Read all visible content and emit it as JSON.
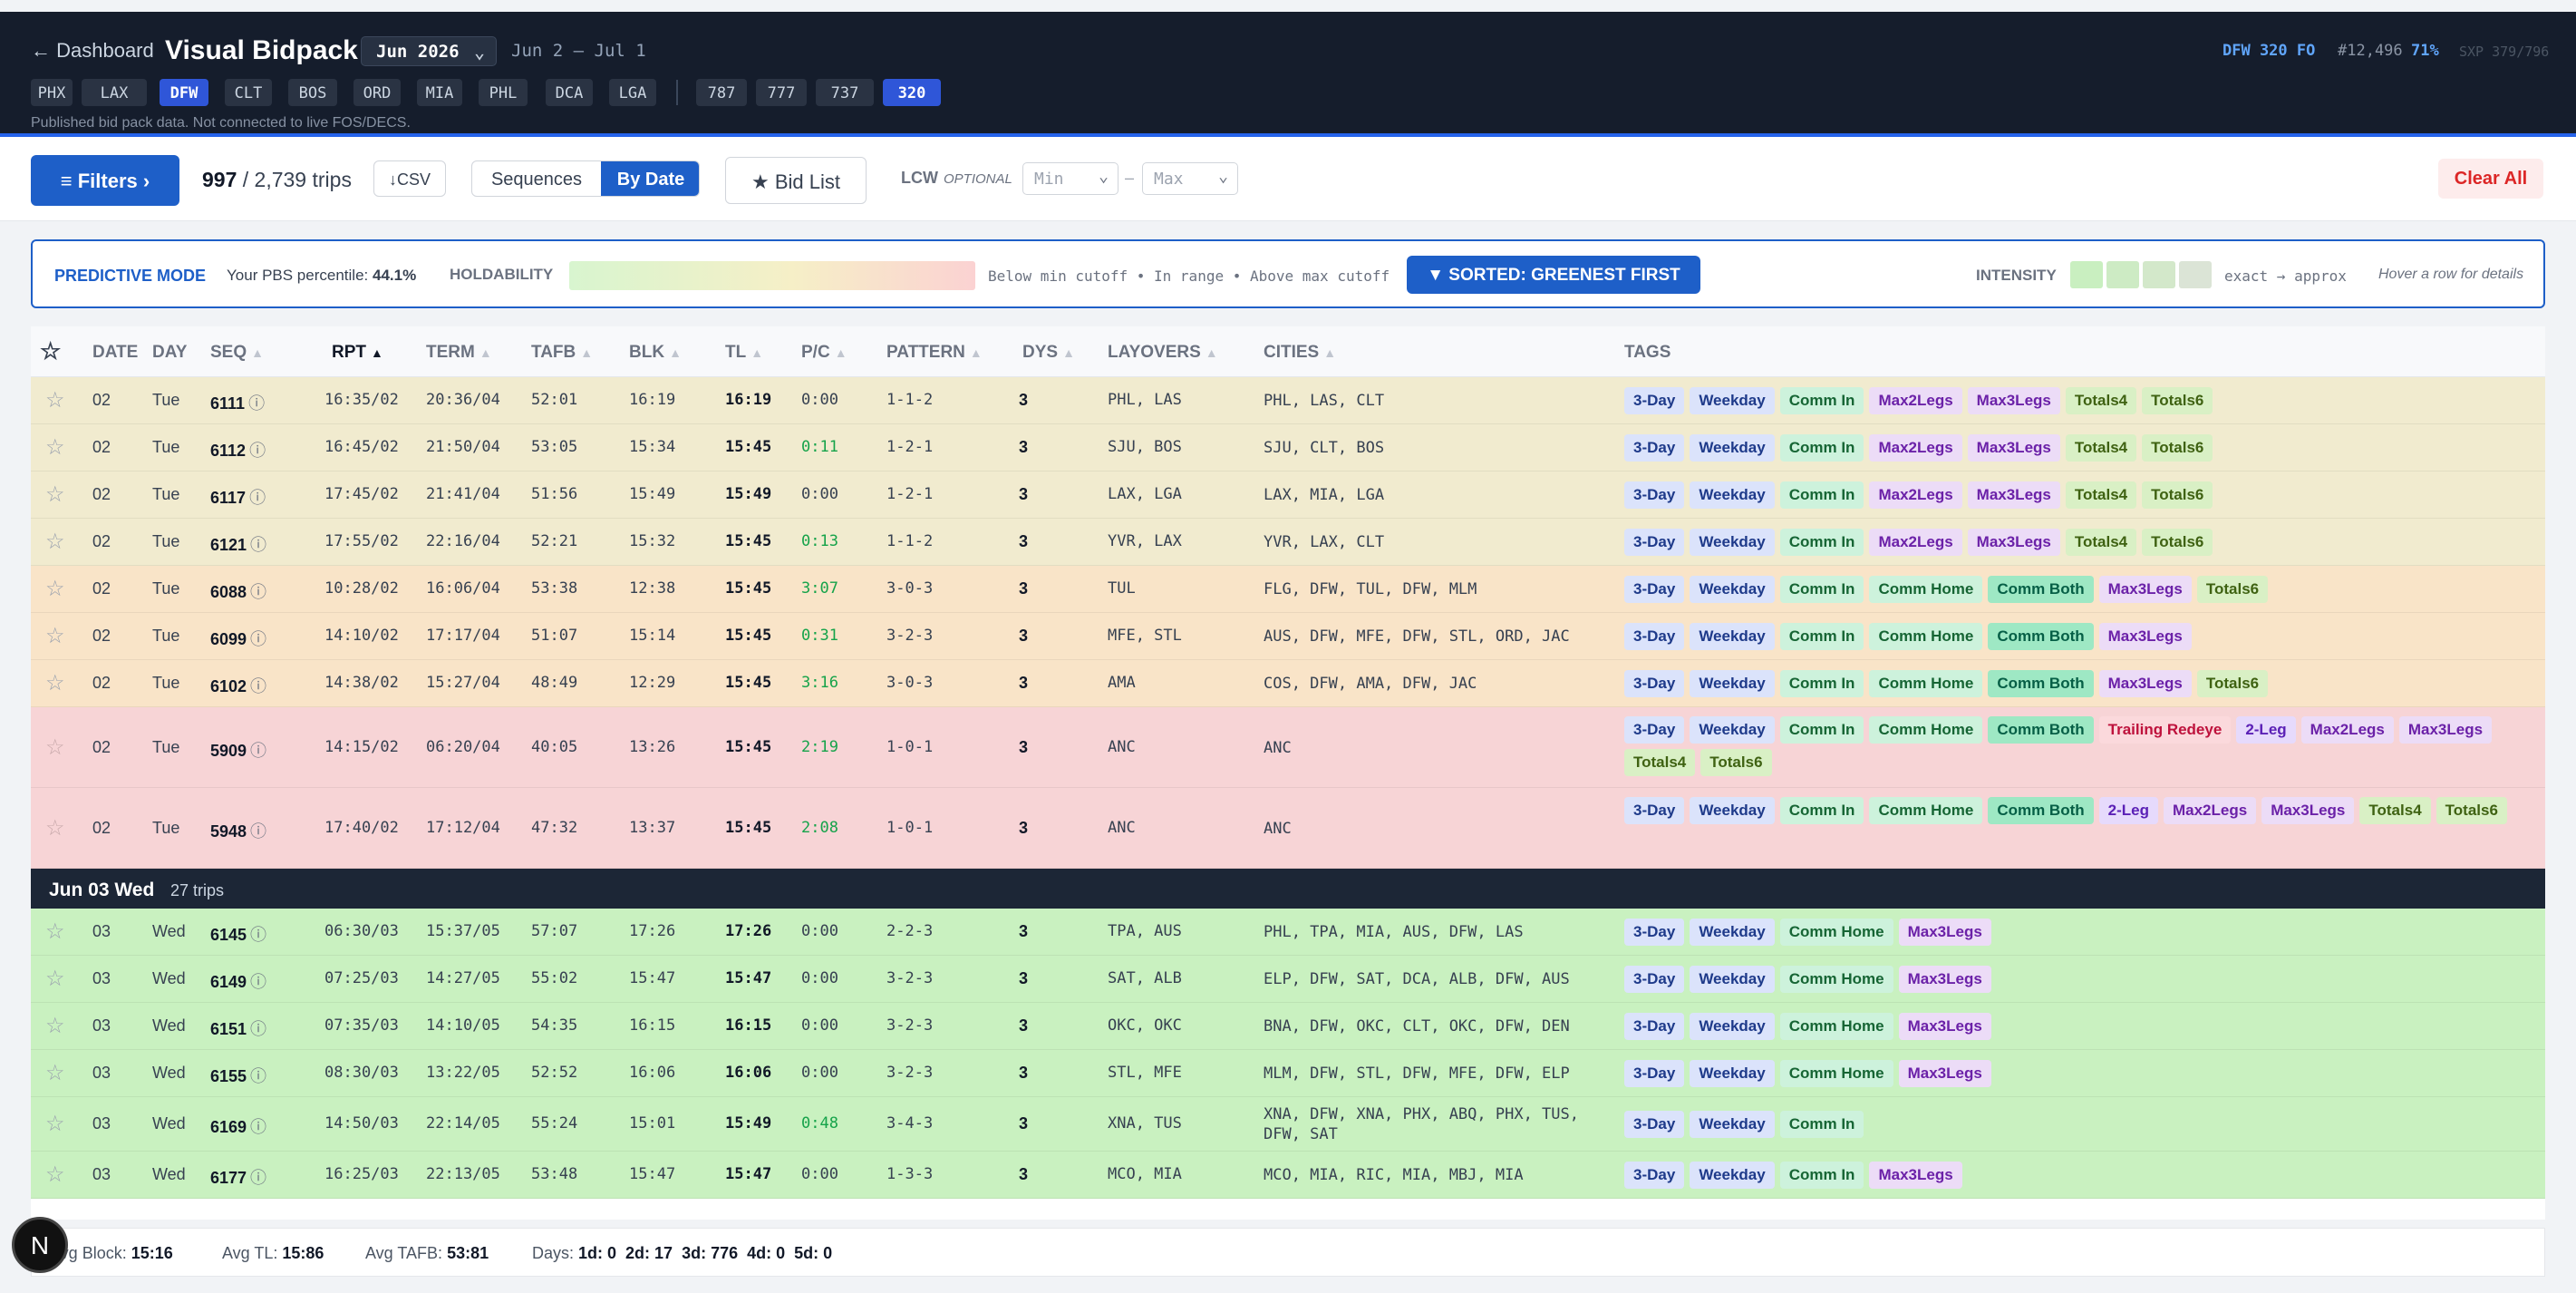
{
  "header": {
    "back": "← Dashboard",
    "title": "Visual Bidpack",
    "month": "Jun 2026",
    "date_range": "Jun 2 – Jul 1",
    "bases": [
      "PHX",
      "LAX",
      "DFW",
      "CLT",
      "BOS",
      "ORD",
      "MIA",
      "PHL",
      "DCA",
      "LGA"
    ],
    "active_base": "DFW",
    "fleets": [
      "787",
      "777",
      "737",
      "320"
    ],
    "active_fleet": "320",
    "note": "Published bid pack data. Not connected to live FOS/DECS.",
    "profile": "DFW 320 FO",
    "seniority": "#12,496",
    "percent": "71%",
    "sxp": "SXP 379/796"
  },
  "toolbar": {
    "filters": "≡ Filters ›",
    "count_shown": "997",
    "count_total": "/ 2,739 trips",
    "csv": "↓CSV",
    "seg_sequences": "Sequences",
    "seg_bydate": "By Date",
    "bid_list": "★ Bid List",
    "lcw": "LCW",
    "lcw_optional": "OPTIONAL",
    "min": "Min",
    "dash": "–",
    "max": "Max",
    "clear_all": "Clear All"
  },
  "predictive": {
    "mode": "PREDICTIVE MODE",
    "pct_label": "Your PBS percentile:",
    "pct_value": "44.1%",
    "holdability": "HOLDABILITY",
    "legend": "Below min cutoff • In range • Above max cutoff",
    "sorted": "▼ SORTED: GREENEST FIRST",
    "intensity": "INTENSITY",
    "intensity_colors": [
      "#c9efc0",
      "#cdebc4",
      "#d3e8ca",
      "#dbe4d6"
    ],
    "exact": "exact → approx",
    "hover": "Hover a row for details"
  },
  "columns": {
    "star": "☆",
    "date": "DATE",
    "day": "DAY",
    "seq": "SEQ",
    "rpt": "RPT",
    "term": "TERM",
    "tafb": "TAFB",
    "blk": "BLK",
    "tl": "TL",
    "pc": "P/C",
    "pattern": "PATTERN",
    "dys": "DYS",
    "layovers": "LAYOVERS",
    "cities": "CITIES",
    "tags": "TAGS"
  },
  "sort_markers": {
    "inactive": "▲",
    "active": "▲"
  },
  "rows_a": [
    {
      "star": "☆",
      "date": "02",
      "day": "Tue",
      "seq": "6111",
      "info": "ⓘ",
      "rpt": "16:35/02",
      "term": "20:36/04",
      "tafb": "52:01",
      "blk": "16:19",
      "tl": "16:19",
      "pc": "0:00",
      "pattern": "1-1-2",
      "dys": "3",
      "layovers": "PHL, LAS",
      "cities": "PHL, LAS, CLT",
      "bg": "#f1ebcf",
      "tags": [
        [
          "3-Day",
          "blue"
        ],
        [
          "Weekday",
          "blue"
        ],
        [
          "Comm In",
          "green"
        ],
        [
          "Max2Legs",
          "purple"
        ],
        [
          "Max3Legs",
          "purple"
        ],
        [
          "Totals4",
          "olive"
        ],
        [
          "Totals6",
          "olive"
        ]
      ]
    },
    {
      "star": "☆",
      "date": "02",
      "day": "Tue",
      "seq": "6112",
      "info": "ⓘ",
      "rpt": "16:45/02",
      "term": "21:50/04",
      "tafb": "53:05",
      "blk": "15:34",
      "tl": "15:45",
      "pc": "0:11",
      "pattern": "1-2-1",
      "dys": "3",
      "layovers": "SJU, BOS",
      "cities": "SJU, CLT, BOS",
      "bg": "#f1ebcf",
      "tags": [
        [
          "3-Day",
          "blue"
        ],
        [
          "Weekday",
          "blue"
        ],
        [
          "Comm In",
          "green"
        ],
        [
          "Max2Legs",
          "purple"
        ],
        [
          "Max3Legs",
          "purple"
        ],
        [
          "Totals4",
          "olive"
        ],
        [
          "Totals6",
          "olive"
        ]
      ]
    },
    {
      "star": "☆",
      "date": "02",
      "day": "Tue",
      "seq": "6117",
      "info": "ⓘ",
      "rpt": "17:45/02",
      "term": "21:41/04",
      "tafb": "51:56",
      "blk": "15:49",
      "tl": "15:49",
      "pc": "0:00",
      "pattern": "1-2-1",
      "dys": "3",
      "layovers": "LAX, LGA",
      "cities": "LAX, MIA, LGA",
      "bg": "#f1ebcf",
      "tags": [
        [
          "3-Day",
          "blue"
        ],
        [
          "Weekday",
          "blue"
        ],
        [
          "Comm In",
          "green"
        ],
        [
          "Max2Legs",
          "purple"
        ],
        [
          "Max3Legs",
          "purple"
        ],
        [
          "Totals4",
          "olive"
        ],
        [
          "Totals6",
          "olive"
        ]
      ]
    },
    {
      "star": "☆",
      "date": "02",
      "day": "Tue",
      "seq": "6121",
      "info": "ⓘ",
      "rpt": "17:55/02",
      "term": "22:16/04",
      "tafb": "52:21",
      "blk": "15:32",
      "tl": "15:45",
      "pc": "0:13",
      "pattern": "1-1-2",
      "dys": "3",
      "layovers": "YVR, LAX",
      "cities": "YVR, LAX, CLT",
      "bg": "#f1ebcf",
      "tags": [
        [
          "3-Day",
          "blue"
        ],
        [
          "Weekday",
          "blue"
        ],
        [
          "Comm In",
          "green"
        ],
        [
          "Max2Legs",
          "purple"
        ],
        [
          "Max3Legs",
          "purple"
        ],
        [
          "Totals4",
          "olive"
        ],
        [
          "Totals6",
          "olive"
        ]
      ]
    },
    {
      "star": "☆",
      "date": "02",
      "day": "Tue",
      "seq": "6088",
      "info": "ⓘ",
      "rpt": "10:28/02",
      "term": "16:06/04",
      "tafb": "53:38",
      "blk": "12:38",
      "tl": "15:45",
      "pc": "3:07",
      "pattern": "3-0-3",
      "dys": "3",
      "layovers": "TUL",
      "cities": "FLG, DFW, TUL, DFW, MLM",
      "bg": "#f9e4c8",
      "tags": [
        [
          "3-Day",
          "blue"
        ],
        [
          "Weekday",
          "blue"
        ],
        [
          "Comm In",
          "green"
        ],
        [
          "Comm Home",
          "green"
        ],
        [
          "Comm Both",
          "teal"
        ],
        [
          "Max3Legs",
          "purple"
        ],
        [
          "Totals6",
          "olive"
        ]
      ]
    },
    {
      "star": "☆",
      "date": "02",
      "day": "Tue",
      "seq": "6099",
      "info": "ⓘ",
      "rpt": "14:10/02",
      "term": "17:17/04",
      "tafb": "51:07",
      "blk": "15:14",
      "tl": "15:45",
      "pc": "0:31",
      "pattern": "3-2-3",
      "dys": "3",
      "layovers": "MFE, STL",
      "cities": "AUS, DFW, MFE, DFW, STL, ORD, JAC",
      "bg": "#f9e4c8",
      "tags": [
        [
          "3-Day",
          "blue"
        ],
        [
          "Weekday",
          "blue"
        ],
        [
          "Comm In",
          "green"
        ],
        [
          "Comm Home",
          "green"
        ],
        [
          "Comm Both",
          "teal"
        ],
        [
          "Max3Legs",
          "purple"
        ]
      ]
    },
    {
      "star": "☆",
      "date": "02",
      "day": "Tue",
      "seq": "6102",
      "info": "ⓘ",
      "rpt": "14:38/02",
      "term": "15:27/04",
      "tafb": "48:49",
      "blk": "12:29",
      "tl": "15:45",
      "pc": "3:16",
      "pattern": "3-0-3",
      "dys": "3",
      "layovers": "AMA",
      "cities": "COS, DFW, AMA, DFW, JAC",
      "bg": "#f9e4c8",
      "tags": [
        [
          "3-Day",
          "blue"
        ],
        [
          "Weekday",
          "blue"
        ],
        [
          "Comm In",
          "green"
        ],
        [
          "Comm Home",
          "green"
        ],
        [
          "Comm Both",
          "teal"
        ],
        [
          "Max3Legs",
          "purple"
        ],
        [
          "Totals6",
          "olive"
        ]
      ]
    },
    {
      "star": "☆",
      "date": "02",
      "day": "Tue",
      "seq": "5909",
      "info": "ⓘ",
      "rpt": "14:15/02",
      "term": "06:20/04",
      "tafb": "40:05",
      "blk": "13:26",
      "tl": "15:45",
      "pc": "2:19",
      "pattern": "1-0-1",
      "dys": "3",
      "layovers": "ANC",
      "cities": "ANC",
      "bg": "#f7d4d6",
      "tall": true,
      "tags": [
        [
          "3-Day",
          "blue"
        ],
        [
          "Weekday",
          "blue"
        ],
        [
          "Comm In",
          "green"
        ],
        [
          "Comm Home",
          "green"
        ],
        [
          "Comm Both",
          "teal"
        ],
        [
          "Trailing Redeye",
          "red"
        ],
        [
          "2-Leg",
          "violet"
        ],
        [
          "Max2Legs",
          "purple"
        ],
        [
          "Max3Legs",
          "purple"
        ],
        [
          "Totals4",
          "olive"
        ],
        [
          "Totals6",
          "olive"
        ]
      ]
    },
    {
      "star": "☆",
      "date": "02",
      "day": "Tue",
      "seq": "5948",
      "info": "ⓘ",
      "rpt": "17:40/02",
      "term": "17:12/04",
      "tafb": "47:32",
      "blk": "13:37",
      "tl": "15:45",
      "pc": "2:08",
      "pattern": "1-0-1",
      "dys": "3",
      "layovers": "ANC",
      "cities": "ANC",
      "bg": "#f7d4d6",
      "tall": true,
      "tags": [
        [
          "3-Day",
          "blue"
        ],
        [
          "Weekday",
          "blue"
        ],
        [
          "Comm In",
          "green"
        ],
        [
          "Comm Home",
          "green"
        ],
        [
          "Comm Both",
          "teal"
        ],
        [
          "2-Leg",
          "violet"
        ],
        [
          "Max2Legs",
          "purple"
        ],
        [
          "Max3Legs",
          "purple"
        ],
        [
          "Totals4",
          "olive"
        ],
        [
          "Totals6",
          "olive"
        ]
      ]
    }
  ],
  "group": {
    "date": "Jun 03 Wed",
    "count": "27 trips"
  },
  "rows_b": [
    {
      "star": "☆",
      "date": "03",
      "day": "Wed",
      "seq": "6145",
      "info": "ⓘ",
      "rpt": "06:30/03",
      "term": "15:37/05",
      "tafb": "57:07",
      "blk": "17:26",
      "tl": "17:26",
      "pc": "0:00",
      "pattern": "2-2-3",
      "dys": "3",
      "layovers": "TPA, AUS",
      "cities": "PHL, TPA, MIA, AUS, DFW, LAS",
      "bg": "#c9f1c0",
      "tags": [
        [
          "3-Day",
          "blue"
        ],
        [
          "Weekday",
          "blue"
        ],
        [
          "Comm Home",
          "green"
        ],
        [
          "Max3Legs",
          "purple"
        ]
      ]
    },
    {
      "star": "☆",
      "date": "03",
      "day": "Wed",
      "seq": "6149",
      "info": "ⓘ",
      "rpt": "07:25/03",
      "term": "14:27/05",
      "tafb": "55:02",
      "blk": "15:47",
      "tl": "15:47",
      "pc": "0:00",
      "pattern": "3-2-3",
      "dys": "3",
      "layovers": "SAT, ALB",
      "cities": "ELP, DFW, SAT, DCA, ALB, DFW, AUS",
      "bg": "#c9f1c0",
      "tags": [
        [
          "3-Day",
          "blue"
        ],
        [
          "Weekday",
          "blue"
        ],
        [
          "Comm Home",
          "green"
        ],
        [
          "Max3Legs",
          "purple"
        ]
      ]
    },
    {
      "star": "☆",
      "date": "03",
      "day": "Wed",
      "seq": "6151",
      "info": "ⓘ",
      "rpt": "07:35/03",
      "term": "14:10/05",
      "tafb": "54:35",
      "blk": "16:15",
      "tl": "16:15",
      "pc": "0:00",
      "pattern": "3-2-3",
      "dys": "3",
      "layovers": "OKC, OKC",
      "cities": "BNA, DFW, OKC, CLT, OKC, DFW, DEN",
      "bg": "#c9f1c0",
      "tags": [
        [
          "3-Day",
          "blue"
        ],
        [
          "Weekday",
          "blue"
        ],
        [
          "Comm Home",
          "green"
        ],
        [
          "Max3Legs",
          "purple"
        ]
      ]
    },
    {
      "star": "☆",
      "date": "03",
      "day": "Wed",
      "seq": "6155",
      "info": "ⓘ",
      "rpt": "08:30/03",
      "term": "13:22/05",
      "tafb": "52:52",
      "blk": "16:06",
      "tl": "16:06",
      "pc": "0:00",
      "pattern": "3-2-3",
      "dys": "3",
      "layovers": "STL, MFE",
      "cities": "MLM, DFW, STL, DFW, MFE, DFW, ELP",
      "bg": "#c9f1c0",
      "tags": [
        [
          "3-Day",
          "blue"
        ],
        [
          "Weekday",
          "blue"
        ],
        [
          "Comm Home",
          "green"
        ],
        [
          "Max3Legs",
          "purple"
        ]
      ]
    },
    {
      "star": "☆",
      "date": "03",
      "day": "Wed",
      "seq": "6169",
      "info": "ⓘ",
      "rpt": "14:50/03",
      "term": "22:14/05",
      "tafb": "55:24",
      "blk": "15:01",
      "tl": "15:49",
      "pc": "0:48",
      "pattern": "3-4-3",
      "dys": "3",
      "layovers": "XNA, TUS",
      "cities": "XNA, DFW, XNA, PHX, ABQ, PHX, TUS, DFW, SAT",
      "bg": "#c9f1c0",
      "tags": [
        [
          "3-Day",
          "blue"
        ],
        [
          "Weekday",
          "blue"
        ],
        [
          "Comm In",
          "green"
        ]
      ]
    },
    {
      "star": "☆",
      "date": "03",
      "day": "Wed",
      "seq": "6177",
      "info": "ⓘ",
      "rpt": "16:25/03",
      "term": "22:13/05",
      "tafb": "53:48",
      "blk": "15:47",
      "tl": "15:47",
      "pc": "0:00",
      "pattern": "1-3-3",
      "dys": "3",
      "layovers": "MCO, MIA",
      "cities": "MCO, MIA, RIC, MIA, MBJ, MIA",
      "bg": "#c9f1c0",
      "tags": [
        [
          "3-Day",
          "blue"
        ],
        [
          "Weekday",
          "blue"
        ],
        [
          "Comm In",
          "green"
        ],
        [
          "Max3Legs",
          "purple"
        ]
      ]
    }
  ],
  "footer": {
    "block_label": "Avg Block:",
    "block": "15:16",
    "tl_label": "Avg TL:",
    "tl": "15:86",
    "tafb_label": "Avg TAFB:",
    "tafb": "53:81",
    "days_label": "Days:",
    "days": "1d: 0  2d: 17  3d: 776  4d: 0  5d: 0"
  },
  "logo": "N"
}
